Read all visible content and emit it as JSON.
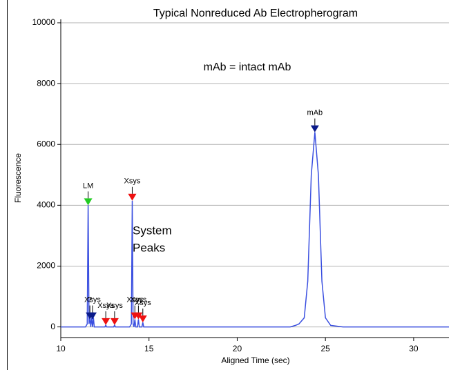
{
  "chart_data": {
    "type": "line",
    "title": "Typical Nonreduced Ab Electropherogram",
    "annotations": [
      "mAb = intact mAb",
      "System",
      "Peaks"
    ],
    "x_label": "Aligned Time (sec)",
    "y_label": "Fluorescence",
    "x": [
      10,
      11.4,
      11.5,
      11.55,
      11.6,
      11.65,
      11.7,
      11.75,
      11.8,
      11.85,
      11.9,
      12.0,
      12.5,
      12.55,
      12.6,
      13.0,
      13.05,
      13.1,
      13.9,
      14.0,
      14.05,
      14.1,
      14.15,
      14.2,
      14.25,
      14.35,
      14.4,
      14.45,
      14.6,
      14.65,
      14.7,
      15,
      20,
      23.0,
      23.3,
      23.5,
      23.8,
      24.0,
      24.2,
      24.4,
      24.6,
      24.8,
      25.0,
      25.3,
      26,
      32
    ],
    "series": [
      {
        "color": "#3a4fe0",
        "values": [
          0,
          0,
          100,
          4000,
          100,
          300,
          0,
          300,
          0,
          300,
          0,
          0,
          0,
          60,
          0,
          0,
          60,
          0,
          0,
          100,
          4150,
          100,
          0,
          250,
          0,
          0,
          250,
          0,
          0,
          150,
          0,
          0,
          0,
          0,
          50,
          100,
          300,
          1500,
          5000,
          6400,
          5000,
          1500,
          300,
          50,
          0,
          0
        ]
      }
    ],
    "markers": [
      {
        "label": "LM",
        "x": 11.55,
        "y": 4000,
        "color": "#22cc22"
      },
      {
        "label": "Xsys",
        "x": 14.05,
        "y": 4150,
        "color": "#ee1111"
      },
      {
        "label": "mAb",
        "x": 24.4,
        "y": 6400,
        "color": "#0a1a8a"
      },
      {
        "label": "?",
        "x": 11.65,
        "y": 250,
        "color": "#0a1a8a"
      },
      {
        "label": "Xsys",
        "x": 11.8,
        "y": 250,
        "color": "#0a1a8a"
      },
      {
        "label": "Xsys",
        "x": 12.55,
        "y": 60,
        "color": "#ee1111"
      },
      {
        "label": "Xsys",
        "x": 13.05,
        "y": 60,
        "color": "#ee1111"
      },
      {
        "label": "Xsys",
        "x": 14.2,
        "y": 250,
        "color": "#ee1111"
      },
      {
        "label": "Xsys",
        "x": 14.4,
        "y": 250,
        "color": "#ee1111"
      },
      {
        "label": "Xsys",
        "x": 14.65,
        "y": 150,
        "color": "#ee1111"
      }
    ],
    "xlim": [
      10,
      32
    ],
    "ylim": [
      -350,
      10000
    ],
    "xticks": [
      10,
      15,
      20,
      25,
      30
    ],
    "yticks": [
      0,
      2000,
      4000,
      6000,
      8000,
      10000
    ],
    "grid": true
  }
}
